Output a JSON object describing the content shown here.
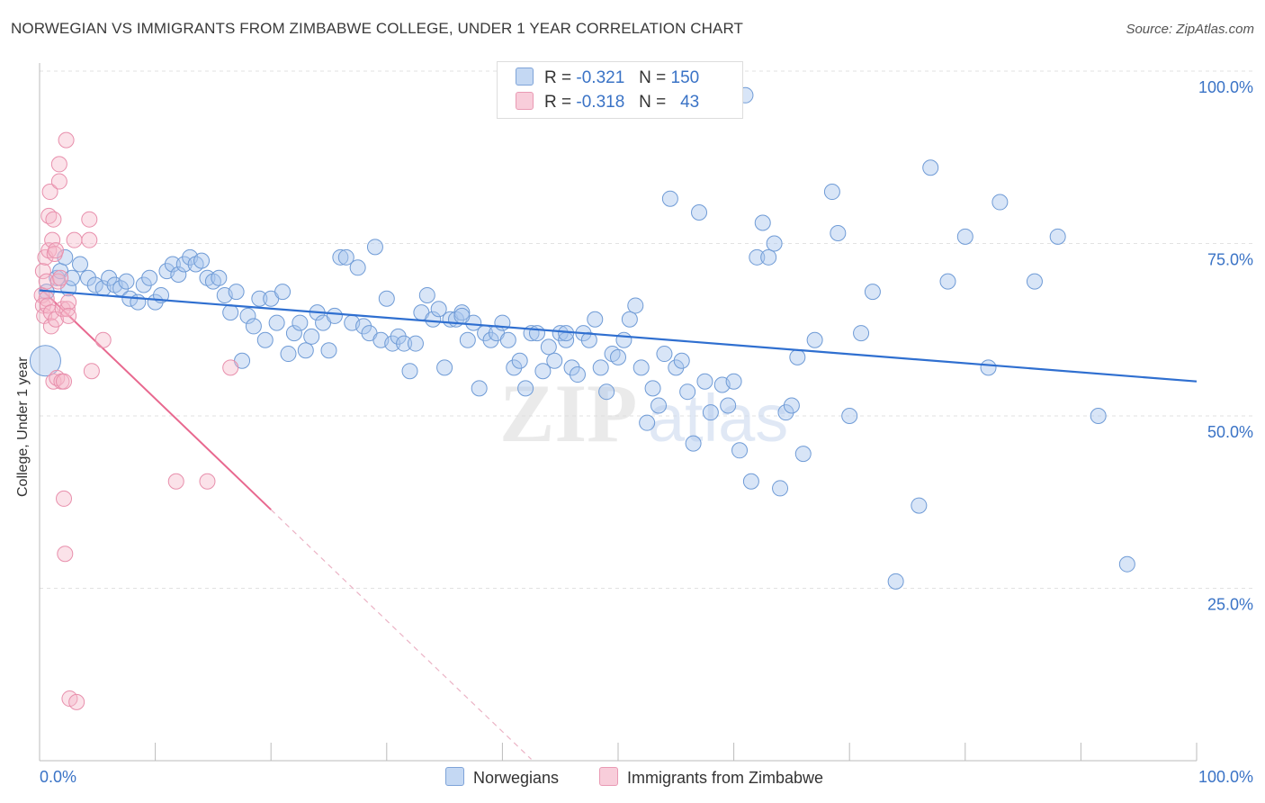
{
  "header": {
    "title": "NORWEGIAN VS IMMIGRANTS FROM ZIMBABWE COLLEGE, UNDER 1 YEAR CORRELATION CHART",
    "source": "Source: ZipAtlas.com"
  },
  "legend": {
    "rows": [
      {
        "r_label": "R =",
        "r_value": "-0.321",
        "n_label": "N =",
        "n_value": "150",
        "color": "#a9c6ee"
      },
      {
        "r_label": "R =",
        "r_value": "-0.318",
        "n_label": "N =",
        "n_value": "43",
        "color": "#f5b6c9"
      }
    ],
    "bottom": [
      "Norwegians",
      "Immigrants from Zimbabwe"
    ]
  },
  "watermark": {
    "zip": "ZIP",
    "atlas": "atlas"
  },
  "chart_data": {
    "type": "scatter",
    "title": "NORWEGIAN VS IMMIGRANTS FROM ZIMBABWE COLLEGE, UNDER 1 YEAR CORRELATION CHART",
    "xlabel": "",
    "ylabel": "College, Under 1 year",
    "xlim": [
      0,
      100
    ],
    "ylim": [
      0,
      100
    ],
    "x_tick_labels": [
      "0.0%",
      "100.0%"
    ],
    "y_tick_labels": [
      "100.0%",
      "75.0%",
      "50.0%",
      "25.0%"
    ],
    "grid": true,
    "legend_position": "top-center",
    "colors": {
      "norwegians": "#3a78d4",
      "zimbabwe": "#e8688f"
    },
    "series": [
      {
        "name": "Norwegians",
        "r": -0.321,
        "n": 150,
        "trend": {
          "x0": 0,
          "y0": 68.2,
          "x1": 100,
          "y1": 55.0
        },
        "points": [
          [
            0.5,
            58
          ],
          [
            0.6,
            68
          ],
          [
            1.5,
            70
          ],
          [
            1.8,
            71
          ],
          [
            2.2,
            73
          ],
          [
            2.5,
            68.5
          ],
          [
            2.8,
            70
          ],
          [
            3.5,
            72
          ],
          [
            4.2,
            70
          ],
          [
            4.8,
            69
          ],
          [
            5.5,
            68.5
          ],
          [
            6.0,
            70
          ],
          [
            6.5,
            69
          ],
          [
            7.0,
            68.5
          ],
          [
            7.5,
            69.5
          ],
          [
            7.8,
            67
          ],
          [
            8.5,
            66.5
          ],
          [
            9.0,
            69
          ],
          [
            9.5,
            70
          ],
          [
            10.0,
            66.5
          ],
          [
            10.5,
            67.5
          ],
          [
            11.0,
            71
          ],
          [
            11.5,
            72
          ],
          [
            12.0,
            70.5
          ],
          [
            12.5,
            72
          ],
          [
            13.0,
            73
          ],
          [
            13.5,
            72
          ],
          [
            14.0,
            72.5
          ],
          [
            14.5,
            70
          ],
          [
            15.0,
            69.5
          ],
          [
            15.5,
            70
          ],
          [
            16.0,
            67.5
          ],
          [
            16.5,
            65
          ],
          [
            17.0,
            68
          ],
          [
            17.5,
            58
          ],
          [
            18.0,
            64.5
          ],
          [
            18.5,
            63
          ],
          [
            19.0,
            67
          ],
          [
            19.5,
            61
          ],
          [
            20.0,
            67
          ],
          [
            20.5,
            63.5
          ],
          [
            21.0,
            68
          ],
          [
            21.5,
            59
          ],
          [
            22.0,
            62
          ],
          [
            22.5,
            63.5
          ],
          [
            23.0,
            59.5
          ],
          [
            23.5,
            61.5
          ],
          [
            24.0,
            65
          ],
          [
            24.5,
            63.5
          ],
          [
            25.0,
            59.5
          ],
          [
            25.5,
            64.5
          ],
          [
            26.0,
            73
          ],
          [
            26.5,
            73
          ],
          [
            27.0,
            63.5
          ],
          [
            27.5,
            71.5
          ],
          [
            28.0,
            63
          ],
          [
            28.5,
            62
          ],
          [
            29.0,
            74.5
          ],
          [
            29.5,
            61
          ],
          [
            30.0,
            67
          ],
          [
            30.5,
            60.5
          ],
          [
            31.0,
            61.5
          ],
          [
            31.5,
            60.5
          ],
          [
            32.0,
            56.5
          ],
          [
            32.5,
            60.5
          ],
          [
            33.0,
            65
          ],
          [
            33.5,
            67.5
          ],
          [
            34.0,
            64
          ],
          [
            34.5,
            65.5
          ],
          [
            35.0,
            57
          ],
          [
            35.5,
            64
          ],
          [
            36.0,
            64
          ],
          [
            36.5,
            65
          ],
          [
            37.0,
            61
          ],
          [
            37.5,
            63.5
          ],
          [
            38.0,
            54
          ],
          [
            38.5,
            62
          ],
          [
            39.0,
            61
          ],
          [
            39.5,
            62
          ],
          [
            40.0,
            63.5
          ],
          [
            40.5,
            61
          ],
          [
            41.0,
            57
          ],
          [
            41.5,
            58
          ],
          [
            42.0,
            54
          ],
          [
            42.5,
            62
          ],
          [
            43.0,
            62
          ],
          [
            43.5,
            56.5
          ],
          [
            44.0,
            60
          ],
          [
            44.5,
            58
          ],
          [
            45.0,
            62
          ],
          [
            45.5,
            61
          ],
          [
            46.0,
            57
          ],
          [
            46.5,
            56
          ],
          [
            47.0,
            62
          ],
          [
            47.5,
            61
          ],
          [
            48.0,
            64
          ],
          [
            48.5,
            57
          ],
          [
            49.0,
            53.5
          ],
          [
            49.5,
            59
          ],
          [
            50.0,
            58.5
          ],
          [
            50.5,
            61
          ],
          [
            51.0,
            64
          ],
          [
            51.5,
            66
          ],
          [
            52.0,
            57
          ],
          [
            52.5,
            49
          ],
          [
            53.0,
            54
          ],
          [
            53.5,
            51.5
          ],
          [
            54.0,
            59
          ],
          [
            54.5,
            81.5
          ],
          [
            55.0,
            57
          ],
          [
            55.5,
            58
          ],
          [
            56.0,
            53.5
          ],
          [
            56.5,
            46
          ],
          [
            57.0,
            79.5
          ],
          [
            57.5,
            55
          ],
          [
            58.0,
            50.5
          ],
          [
            59.0,
            54.5
          ],
          [
            59.5,
            51.5
          ],
          [
            60.0,
            55
          ],
          [
            60.5,
            45
          ],
          [
            61.0,
            96.5
          ],
          [
            61.5,
            40.5
          ],
          [
            62.0,
            73
          ],
          [
            62.5,
            78
          ],
          [
            63.0,
            73
          ],
          [
            63.5,
            75
          ],
          [
            64.0,
            39.5
          ],
          [
            64.5,
            50.5
          ],
          [
            65.0,
            51.5
          ],
          [
            65.5,
            58.5
          ],
          [
            66.0,
            44.5
          ],
          [
            67.0,
            61
          ],
          [
            68.5,
            82.5
          ],
          [
            69.0,
            76.5
          ],
          [
            70.0,
            50
          ],
          [
            71.0,
            62
          ],
          [
            72.0,
            68
          ],
          [
            74.0,
            26
          ],
          [
            76.0,
            37
          ],
          [
            77.0,
            86
          ],
          [
            78.5,
            69.5
          ],
          [
            80.0,
            76
          ],
          [
            82.0,
            57
          ],
          [
            83.0,
            81
          ],
          [
            86.0,
            69.5
          ],
          [
            88.0,
            76
          ],
          [
            91.5,
            50
          ],
          [
            94.0,
            28.5
          ],
          [
            45.5,
            62
          ],
          [
            36.5,
            64.5
          ]
        ]
      },
      {
        "name": "Immigrants from Zimbabwe",
        "r": -0.318,
        "n": 43,
        "trend": {
          "x0": 0,
          "y0": 68.6,
          "x1": 20,
          "y1": 36.4,
          "dash_x1": 42.5,
          "dash_y1": 0.2
        },
        "points": [
          [
            0.2,
            67.5
          ],
          [
            0.3,
            66
          ],
          [
            0.3,
            71
          ],
          [
            0.4,
            64.5
          ],
          [
            0.5,
            73
          ],
          [
            0.6,
            69.5
          ],
          [
            0.6,
            67
          ],
          [
            0.7,
            66
          ],
          [
            0.8,
            79
          ],
          [
            0.8,
            74
          ],
          [
            0.9,
            82.5
          ],
          [
            1.0,
            65
          ],
          [
            1.0,
            63
          ],
          [
            1.1,
            75.5
          ],
          [
            1.2,
            55
          ],
          [
            1.2,
            78.5
          ],
          [
            1.3,
            73.5
          ],
          [
            1.4,
            74
          ],
          [
            1.4,
            64
          ],
          [
            1.5,
            55.5
          ],
          [
            1.6,
            69.5
          ],
          [
            1.7,
            84
          ],
          [
            1.7,
            86.5
          ],
          [
            1.8,
            70
          ],
          [
            1.9,
            55
          ],
          [
            2.0,
            65.5
          ],
          [
            2.1,
            55
          ],
          [
            2.1,
            38
          ],
          [
            2.2,
            30
          ],
          [
            2.3,
            90
          ],
          [
            2.4,
            65.5
          ],
          [
            2.5,
            66.5
          ],
          [
            2.5,
            64.5
          ],
          [
            2.6,
            9
          ],
          [
            3.0,
            75.5
          ],
          [
            3.2,
            8.5
          ],
          [
            4.3,
            75.5
          ],
          [
            4.3,
            78.5
          ],
          [
            4.5,
            56.5
          ],
          [
            5.5,
            61
          ],
          [
            16.5,
            57
          ],
          [
            11.8,
            40.5
          ],
          [
            14.5,
            40.5
          ]
        ]
      }
    ]
  }
}
